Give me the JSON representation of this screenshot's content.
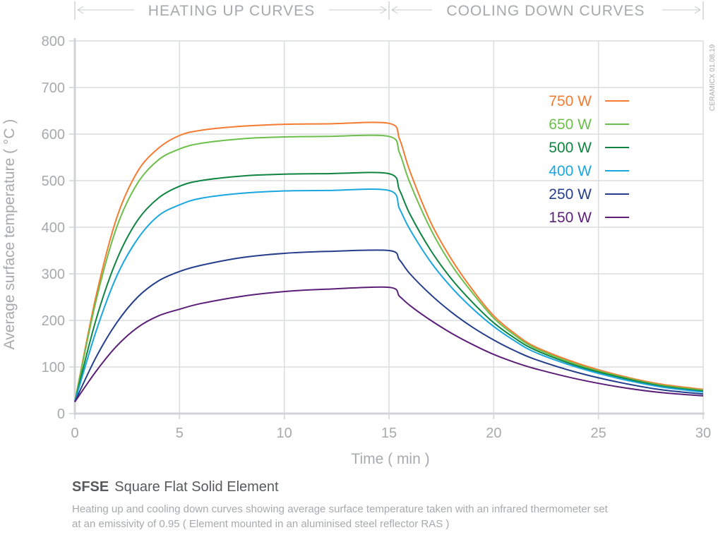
{
  "header": {
    "heating_label": "HEATING UP CURVES",
    "cooling_label": "COOLING DOWN CURVES",
    "stamp": "CERAMICX 01.08.19"
  },
  "caption": {
    "code": "SFSE",
    "title": "Square Flat Solid Element",
    "description_line1": "Heating up and cooling down curves showing average surface temperature taken with an infrared thermometer set",
    "description_line2": "at an emissivity of 0.95  ( Element mounted in an aluminised steel reflector RAS )"
  },
  "chart_data": {
    "type": "line",
    "title": "SFSE Square Flat Solid Element",
    "xlabel": "Time ( min )",
    "ylabel": "Average surface temperature ( °C )",
    "xlim": [
      0,
      30
    ],
    "ylim": [
      0,
      800
    ],
    "xticks": [
      "0",
      "5",
      "10",
      "15",
      "20",
      "25",
      "30"
    ],
    "yticks": [
      "0",
      "100",
      "200",
      "300",
      "400",
      "500",
      "600",
      "700",
      "800"
    ],
    "grid": true,
    "legend_position": "top-right",
    "x": [
      0,
      1,
      2,
      3,
      4,
      5,
      6,
      8,
      10,
      12,
      15,
      15.5,
      16,
      17,
      18,
      19,
      20,
      21,
      22,
      24,
      26,
      28,
      30
    ],
    "series": [
      {
        "name": "750 W",
        "color": "#f47b30",
        "values": [
          25,
          250,
          420,
          520,
          570,
          597,
          608,
          617,
          621,
          622,
          623,
          590,
          520,
          410,
          330,
          265,
          210,
          172,
          143,
          108,
          82,
          63,
          52
        ]
      },
      {
        "name": "650 W",
        "color": "#6cbf4b",
        "values": [
          25,
          240,
          400,
          495,
          545,
          568,
          580,
          590,
          594,
          595,
          595,
          560,
          495,
          395,
          318,
          258,
          205,
          168,
          140,
          105,
          80,
          61,
          50
        ]
      },
      {
        "name": "500 W",
        "color": "#0f8441",
        "values": [
          25,
          200,
          330,
          415,
          463,
          488,
          500,
          510,
          514,
          515,
          515,
          480,
          428,
          350,
          288,
          238,
          195,
          162,
          136,
          102,
          78,
          59,
          48
        ]
      },
      {
        "name": "400 W",
        "color": "#1aa6df",
        "values": [
          25,
          175,
          295,
          375,
          425,
          448,
          462,
          473,
          478,
          479,
          479,
          440,
          395,
          325,
          270,
          225,
          187,
          156,
          131,
          99,
          75,
          57,
          46
        ]
      },
      {
        "name": "250 W",
        "color": "#253e8c",
        "values": [
          25,
          120,
          195,
          250,
          285,
          305,
          318,
          335,
          344,
          348,
          350,
          330,
          300,
          255,
          217,
          185,
          158,
          135,
          116,
          88,
          67,
          51,
          42
        ]
      },
      {
        "name": "150 W",
        "color": "#5b1f78",
        "values": [
          25,
          90,
          145,
          185,
          210,
          224,
          236,
          252,
          262,
          267,
          271,
          252,
          232,
          200,
          172,
          148,
          127,
          110,
          96,
          74,
          57,
          45,
          38
        ]
      }
    ]
  }
}
